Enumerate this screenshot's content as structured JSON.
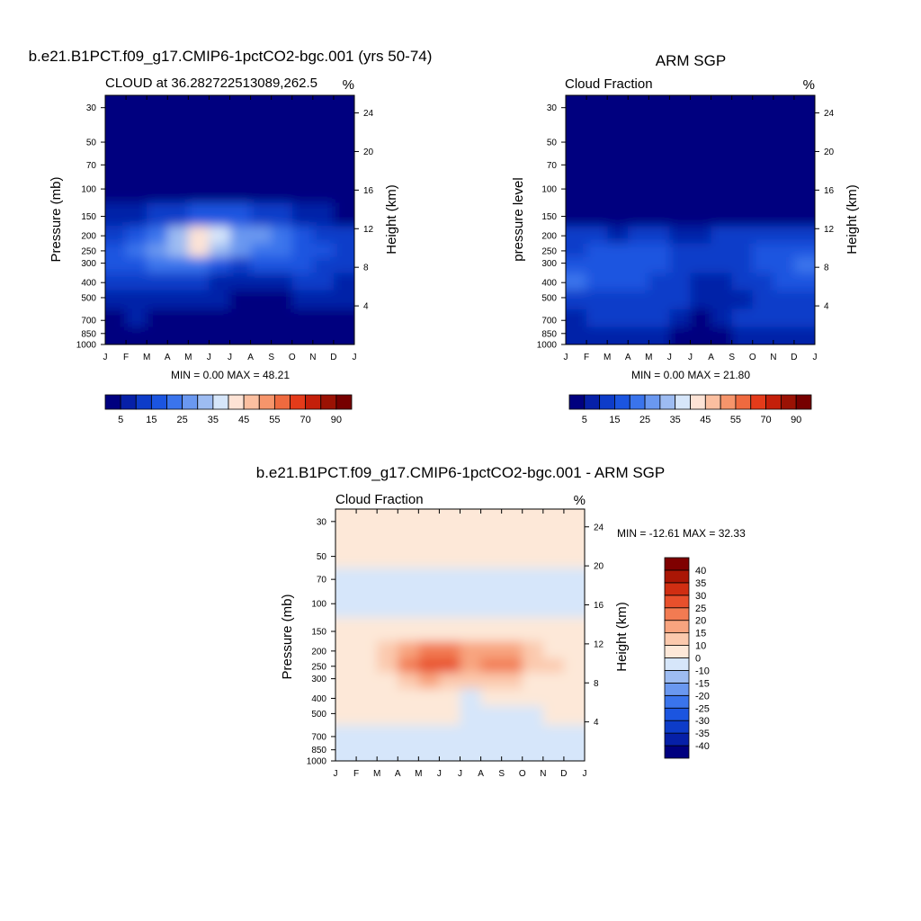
{
  "panels": [
    {
      "main_title": "b.e21.B1PCT.f09_g17.CMIP6-1pctCO2-bgc.001 (yrs 50-74)",
      "left_title": "CLOUD at 36.282722513089,262.5",
      "units": "%",
      "ylabel": "Pressure (mb)",
      "y2label": "Height (km)",
      "stats": "MIN =   0.00 MAX =  48.21"
    },
    {
      "main_title": "ARM SGP",
      "left_title": "Cloud Fraction",
      "units": "%",
      "ylabel": "pressure level",
      "y2label": "Height (km)",
      "stats": "MIN =   0.00 MAX =  21.80"
    },
    {
      "main_title": "b.e21.B1PCT.f09_g17.CMIP6-1pctCO2-bgc.001 - ARM SGP",
      "left_title": "Cloud Fraction",
      "units": "%",
      "ylabel": "Pressure (mb)",
      "y2label": "Height (km)",
      "stats": "MIN = -12.61 MAX =  32.33"
    }
  ],
  "chart_data": [
    {
      "type": "heatmap",
      "title": "CLOUD at 36.282722513089,262.5",
      "xlabel": "",
      "ylabel": "Pressure (mb)",
      "y2label": "Height (km)",
      "x_ticks": [
        "J",
        "F",
        "M",
        "A",
        "M",
        "J",
        "J",
        "A",
        "S",
        "O",
        "N",
        "D",
        "J"
      ],
      "y_ticks": [
        30,
        50,
        70,
        100,
        150,
        200,
        250,
        300,
        400,
        500,
        700,
        850,
        1000
      ],
      "y2_ticks": [
        24,
        20,
        16,
        12,
        8,
        4
      ],
      "y_scale": "log",
      "ylim": [
        1000,
        25
      ],
      "min": 0.0,
      "max": 48.21,
      "colorbar_levels": [
        5,
        10,
        15,
        20,
        25,
        30,
        35,
        40,
        45,
        50,
        55,
        60,
        70,
        80,
        90
      ],
      "colorbar_labels": [
        "5",
        "15",
        "25",
        "35",
        "45",
        "55",
        "70",
        "90"
      ],
      "colors": [
        "#00007f",
        "#0620a8",
        "#0d3cc9",
        "#1b55e0",
        "#3a74ec",
        "#6a98f0",
        "#9dbcf2",
        "#d6e6fa",
        "#fde3d5",
        "#fbbfa0",
        "#f6956b",
        "#ef6a3f",
        "#e43b1a",
        "#c41f0a",
        "#9b1204",
        "#760000"
      ],
      "cell_values": [
        [
          0,
          0,
          0,
          0,
          0,
          0,
          0,
          0,
          0,
          0,
          0,
          0
        ],
        [
          0,
          0,
          0,
          0,
          0,
          0,
          0,
          0,
          0,
          0,
          0,
          0
        ],
        [
          0,
          0,
          0,
          0,
          0,
          0,
          0,
          0,
          0,
          0,
          0,
          0
        ],
        [
          0,
          0,
          0,
          0,
          0,
          0,
          0,
          0,
          0,
          0,
          0,
          0
        ],
        [
          7,
          8,
          10,
          14,
          18,
          19,
          17,
          12,
          10,
          8,
          6,
          4
        ],
        [
          14,
          18,
          24,
          32,
          40,
          38,
          28,
          25,
          22,
          17,
          14,
          11
        ],
        [
          18,
          22,
          26,
          32,
          42,
          30,
          26,
          22,
          20,
          18,
          16,
          12
        ],
        [
          16,
          18,
          20,
          22,
          22,
          18,
          14,
          16,
          16,
          15,
          13,
          11
        ],
        [
          10,
          12,
          14,
          14,
          12,
          9,
          5,
          5,
          8,
          10,
          10,
          8
        ],
        [
          6,
          8,
          8,
          8,
          7,
          5,
          3,
          3,
          4,
          6,
          7,
          6
        ],
        [
          3,
          5,
          4,
          4,
          3,
          2,
          1,
          1,
          2,
          3,
          4,
          3
        ],
        [
          2,
          3,
          3,
          3,
          2,
          1,
          1,
          1,
          1,
          1,
          2,
          2
        ]
      ]
    },
    {
      "type": "heatmap",
      "title": "Cloud Fraction",
      "xlabel": "",
      "ylabel": "pressure level",
      "y2label": "Height (km)",
      "x_ticks": [
        "J",
        "F",
        "M",
        "A",
        "M",
        "J",
        "J",
        "A",
        "S",
        "O",
        "N",
        "D",
        "J"
      ],
      "y_ticks": [
        30,
        50,
        70,
        100,
        150,
        200,
        250,
        300,
        400,
        500,
        700,
        850,
        1000
      ],
      "y2_ticks": [
        24,
        20,
        16,
        12,
        8,
        4
      ],
      "y_scale": "log",
      "ylim": [
        1000,
        25
      ],
      "min": 0.0,
      "max": 21.8,
      "colorbar_levels": [
        5,
        10,
        15,
        20,
        25,
        30,
        35,
        40,
        45,
        50,
        55,
        60,
        70,
        80,
        90
      ],
      "colorbar_labels": [
        "5",
        "15",
        "25",
        "35",
        "45",
        "55",
        "70",
        "90"
      ],
      "colors": [
        "#00007f",
        "#0620a8",
        "#0d3cc9",
        "#1b55e0",
        "#3a74ec",
        "#6a98f0",
        "#9dbcf2",
        "#d6e6fa",
        "#fde3d5",
        "#fbbfa0",
        "#f6956b",
        "#ef6a3f",
        "#e43b1a",
        "#c41f0a",
        "#9b1204",
        "#760000"
      ],
      "cell_values": [
        [
          0,
          0,
          0,
          0,
          0,
          0,
          0,
          0,
          0,
          0,
          0,
          0
        ],
        [
          0,
          0,
          0,
          0,
          0,
          0,
          0,
          0,
          0,
          0,
          0,
          0
        ],
        [
          0,
          0,
          0,
          0,
          0,
          0,
          0,
          0,
          0,
          0,
          0,
          0
        ],
        [
          0,
          0,
          0,
          0,
          0,
          0,
          0,
          0,
          0,
          0,
          0,
          0
        ],
        [
          3,
          2,
          2,
          3,
          3,
          2,
          2,
          2,
          2,
          2,
          3,
          3
        ],
        [
          10,
          10,
          9,
          10,
          10,
          9,
          9,
          10,
          10,
          10,
          10,
          10
        ],
        [
          14,
          15,
          16,
          15,
          15,
          13,
          12,
          13,
          14,
          15,
          16,
          16
        ],
        [
          18,
          17,
          15,
          16,
          15,
          13,
          10,
          10,
          13,
          16,
          18,
          20
        ],
        [
          21,
          18,
          16,
          16,
          14,
          12,
          8,
          7,
          10,
          14,
          17,
          19
        ],
        [
          14,
          14,
          13,
          13,
          12,
          10,
          6,
          6,
          8,
          12,
          14,
          14
        ],
        [
          8,
          11,
          12,
          13,
          12,
          6,
          3,
          6,
          10,
          13,
          12,
          10
        ],
        [
          6,
          6,
          8,
          8,
          6,
          4,
          4,
          4,
          5,
          8,
          8,
          6
        ]
      ]
    },
    {
      "type": "heatmap",
      "title": "Cloud Fraction",
      "xlabel": "",
      "ylabel": "Pressure (mb)",
      "y2label": "Height (km)",
      "x_ticks": [
        "J",
        "F",
        "M",
        "A",
        "M",
        "J",
        "J",
        "A",
        "S",
        "O",
        "N",
        "D",
        "J"
      ],
      "y_ticks": [
        30,
        50,
        70,
        100,
        150,
        200,
        250,
        300,
        400,
        500,
        700,
        850,
        1000
      ],
      "y2_ticks": [
        24,
        20,
        16,
        12,
        8,
        4
      ],
      "y_scale": "log",
      "ylim": [
        1000,
        25
      ],
      "min": -12.61,
      "max": 32.33,
      "colorbar_levels": [
        -40,
        -35,
        -30,
        -25,
        -20,
        -15,
        -10,
        0,
        10,
        15,
        20,
        25,
        30,
        35,
        40
      ],
      "colorbar_labels": [
        "-40",
        "-35",
        "-30",
        "-25",
        "-20",
        "-15",
        "-10",
        "0",
        "10",
        "15",
        "20",
        "25",
        "30",
        "35",
        "40"
      ],
      "colors": [
        "#00007f",
        "#0620a8",
        "#0d3cc9",
        "#1b55e0",
        "#3a74ec",
        "#6a98f0",
        "#9dbcf2",
        "#d6e6fa",
        "#fde8d8",
        "#fbc9ad",
        "#f8a47f",
        "#f27b52",
        "#e8502c",
        "#d02e12",
        "#aa1605",
        "#7f0000"
      ],
      "cell_values": [
        [
          1,
          1,
          1,
          1,
          1,
          1,
          1,
          1,
          1,
          1,
          1,
          1
        ],
        [
          1,
          1,
          1,
          1,
          1,
          1,
          1,
          1,
          1,
          1,
          1,
          1
        ],
        [
          -1,
          -1,
          -1,
          -1,
          -1,
          -1,
          -1,
          -1,
          -1,
          -1,
          -1,
          -1
        ],
        [
          -1,
          -1,
          -1,
          -1,
          -1,
          -1,
          -1,
          -1,
          -1,
          -1,
          -1,
          -1
        ],
        [
          2,
          2,
          2,
          2,
          5,
          6,
          4,
          3,
          3,
          2,
          2,
          2
        ],
        [
          4,
          7,
          11,
          17,
          22,
          24,
          18,
          17,
          16,
          12,
          9,
          6
        ],
        [
          5,
          8,
          13,
          20,
          27,
          28,
          17,
          22,
          20,
          13,
          10,
          7
        ],
        [
          3,
          4,
          7,
          12,
          15,
          14,
          12,
          12,
          11,
          8,
          5,
          3
        ],
        [
          2,
          3,
          4,
          5,
          4,
          2,
          -1,
          1,
          2,
          1,
          2,
          2
        ],
        [
          1,
          1,
          1,
          1,
          1,
          1,
          -2,
          -1,
          -3,
          -4,
          1,
          1
        ],
        [
          -2,
          -2,
          -3,
          -3,
          -3,
          -2,
          -2,
          -2,
          -3,
          -3,
          -3,
          -2
        ],
        [
          -2,
          -2,
          -2,
          -2,
          -2,
          -2,
          -2,
          -2,
          -2,
          -2,
          -2,
          -2
        ]
      ]
    }
  ]
}
